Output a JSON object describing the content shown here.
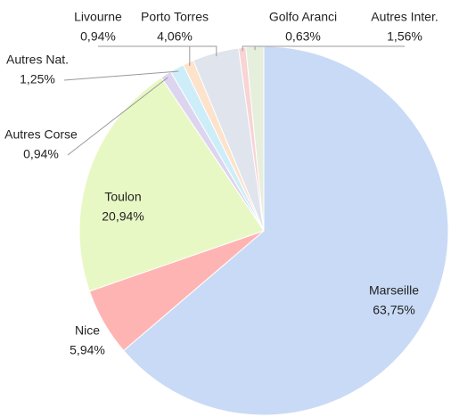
{
  "chart_data": {
    "type": "pie",
    "categories": [
      "Marseille",
      "Nice",
      "Toulon",
      "Autres Corse",
      "Autres Nat.",
      "Livourne",
      "Porto Torres",
      "Golfo Aranci",
      "Autres Inter."
    ],
    "values": [
      63.75,
      5.94,
      20.94,
      0.94,
      1.25,
      0.94,
      4.06,
      0.63,
      1.56
    ],
    "value_labels": [
      "63,75%",
      "5,94%",
      "20,94%",
      "0,94%",
      "1,25%",
      "0,94%",
      "4,06%",
      "0,63%",
      "1,56%"
    ],
    "colors": [
      "#c9daf6",
      "#ffb4b4",
      "#e8f8c4",
      "#ddd4f0",
      "#cdeef9",
      "#fde2cc",
      "#dfe4ed",
      "#f8d4d4",
      "#e6efdc"
    ]
  }
}
